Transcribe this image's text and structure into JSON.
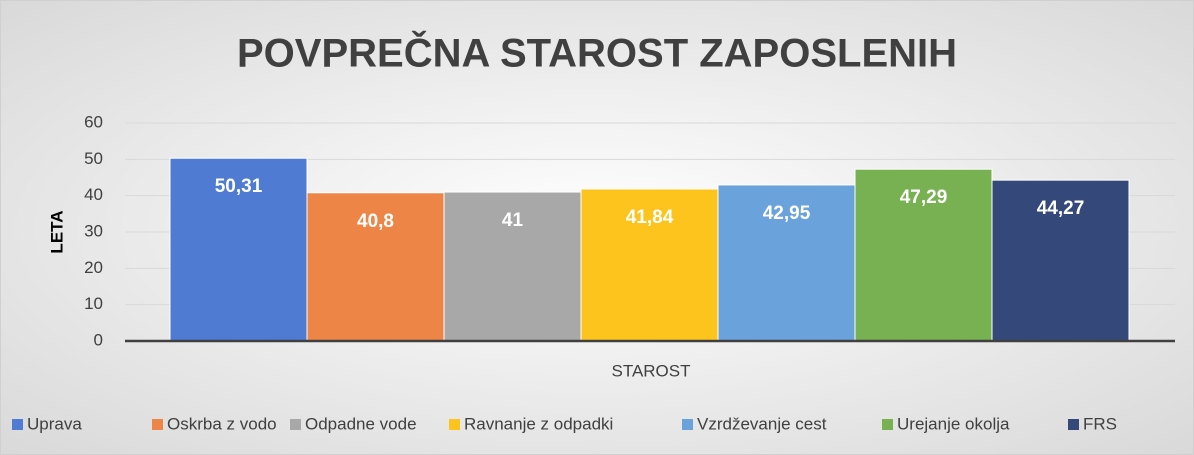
{
  "chart_data": {
    "type": "bar",
    "title": "POVPREČNA STAROST ZAPOSLENIH",
    "y_label": "LETA",
    "categories": [
      "STAROST"
    ],
    "series": [
      {
        "name": "Uprava",
        "color": "#4f7bd3",
        "values": [
          50.31
        ],
        "value_labels": [
          "50,31"
        ]
      },
      {
        "name": "Oskrba z vodo",
        "color": "#ed8547",
        "values": [
          40.8
        ],
        "value_labels": [
          "40,8"
        ]
      },
      {
        "name": "Odpadne vode",
        "color": "#a8a8a8",
        "values": [
          41
        ],
        "value_labels": [
          "41"
        ]
      },
      {
        "name": "Ravnanje z odpadki",
        "color": "#fdc41e",
        "values": [
          41.84
        ],
        "value_labels": [
          "41,84"
        ]
      },
      {
        "name": "Vzrdževanje cest",
        "color": "#6aa2dc",
        "values": [
          42.95
        ],
        "value_labels": [
          "42,95"
        ]
      },
      {
        "name": "Urejanje okolja",
        "color": "#78b152",
        "values": [
          47.29
        ],
        "value_labels": [
          "47,29"
        ]
      },
      {
        "name": "FRS",
        "color": "#34497a",
        "values": [
          44.27
        ],
        "value_labels": [
          "44,27"
        ]
      }
    ],
    "ylim": [
      0,
      60
    ],
    "yticks": [
      0,
      10,
      20,
      30,
      40,
      50,
      60
    ],
    "grid": true,
    "legend": "bottom"
  }
}
